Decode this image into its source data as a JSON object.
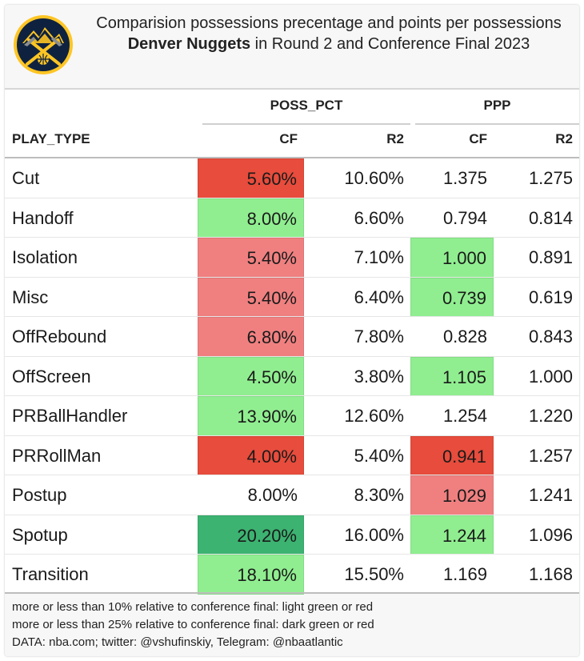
{
  "title": {
    "line1": "Comparision possessions precentage and points per possessions",
    "line2_bold": "Denver Nuggets",
    "line2_rest": " in Round 2 and Conference Final 2023"
  },
  "logo": {
    "icon": "denver-nuggets-logo",
    "colors": {
      "navy": "#0e2240",
      "gold": "#fec524"
    }
  },
  "colors": {
    "light_green": "#90ee90",
    "dark_green": "#3cb371",
    "light_red": "#f08080",
    "dark_red": "#e74c3c"
  },
  "chart_data": {
    "type": "table",
    "column_groups": [
      {
        "name": "POSS_PCT",
        "columns": [
          "CF",
          "R2"
        ]
      },
      {
        "name": "PPP",
        "columns": [
          "CF",
          "R2"
        ]
      }
    ],
    "row_header": "PLAY_TYPE",
    "rows": [
      {
        "play_type": "Cut",
        "poss_cf": "5.60%",
        "poss_r2": "10.60%",
        "ppp_cf": "1.375",
        "ppp_r2": "1.275",
        "poss_cf_color": "dark_red",
        "ppp_cf_color": "none"
      },
      {
        "play_type": "Handoff",
        "poss_cf": "8.00%",
        "poss_r2": "6.60%",
        "ppp_cf": "0.794",
        "ppp_r2": "0.814",
        "poss_cf_color": "light_green",
        "ppp_cf_color": "none"
      },
      {
        "play_type": "Isolation",
        "poss_cf": "5.40%",
        "poss_r2": "7.10%",
        "ppp_cf": "1.000",
        "ppp_r2": "0.891",
        "poss_cf_color": "light_red",
        "ppp_cf_color": "light_green"
      },
      {
        "play_type": "Misc",
        "poss_cf": "5.40%",
        "poss_r2": "6.40%",
        "ppp_cf": "0.739",
        "ppp_r2": "0.619",
        "poss_cf_color": "light_red",
        "ppp_cf_color": "light_green"
      },
      {
        "play_type": "OffRebound",
        "poss_cf": "6.80%",
        "poss_r2": "7.80%",
        "ppp_cf": "0.828",
        "ppp_r2": "0.843",
        "poss_cf_color": "light_red",
        "ppp_cf_color": "none"
      },
      {
        "play_type": "OffScreen",
        "poss_cf": "4.50%",
        "poss_r2": "3.80%",
        "ppp_cf": "1.105",
        "ppp_r2": "1.000",
        "poss_cf_color": "light_green",
        "ppp_cf_color": "light_green"
      },
      {
        "play_type": "PRBallHandler",
        "poss_cf": "13.90%",
        "poss_r2": "12.60%",
        "ppp_cf": "1.254",
        "ppp_r2": "1.220",
        "poss_cf_color": "light_green",
        "ppp_cf_color": "none"
      },
      {
        "play_type": "PRRollMan",
        "poss_cf": "4.00%",
        "poss_r2": "5.40%",
        "ppp_cf": "0.941",
        "ppp_r2": "1.257",
        "poss_cf_color": "dark_red",
        "ppp_cf_color": "dark_red"
      },
      {
        "play_type": "Postup",
        "poss_cf": "8.00%",
        "poss_r2": "8.30%",
        "ppp_cf": "1.029",
        "ppp_r2": "1.241",
        "poss_cf_color": "none",
        "ppp_cf_color": "light_red"
      },
      {
        "play_type": "Spotup",
        "poss_cf": "20.20%",
        "poss_r2": "16.00%",
        "ppp_cf": "1.244",
        "ppp_r2": "1.096",
        "poss_cf_color": "dark_green",
        "ppp_cf_color": "light_green"
      },
      {
        "play_type": "Transition",
        "poss_cf": "18.10%",
        "poss_r2": "15.50%",
        "ppp_cf": "1.169",
        "ppp_r2": "1.168",
        "poss_cf_color": "light_green",
        "ppp_cf_color": "none"
      }
    ]
  },
  "footer": [
    "more or less than 10% relative to conference final: light green or red",
    "more or less than 25% relative to conference final: dark green or red",
    "DATA: nba.com; twitter: @vshufinskiy, Telegram: @nbaatlantic"
  ]
}
